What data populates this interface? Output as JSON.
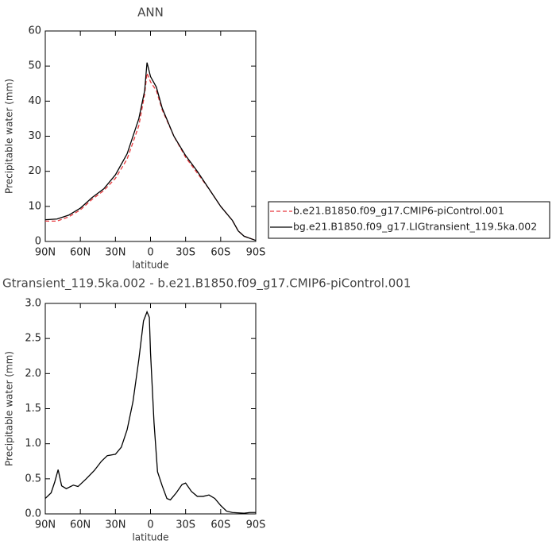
{
  "chart_data": [
    {
      "type": "line",
      "title": "ANN",
      "ylabel": "Precipitable water (mm)",
      "xlabel": "latitude",
      "x": [
        90,
        80,
        70,
        60,
        50,
        40,
        30,
        20,
        10,
        5,
        3,
        0,
        -5,
        -10,
        -20,
        -30,
        -40,
        -50,
        -60,
        -70,
        -75,
        -80,
        -90
      ],
      "series": [
        {
          "name": "b.e21.B1850.f09_g17.CMIP6-piControl.001",
          "color": "#e8383d",
          "style": "dashed",
          "values": [
            5.8,
            5.8,
            7,
            9,
            12,
            14.5,
            18,
            23.5,
            33,
            42,
            48,
            45.5,
            43,
            37.5,
            30,
            24,
            19.5,
            15,
            10,
            6,
            3,
            1.5,
            0.3
          ]
        },
        {
          "name": "bg.e21.B1850.f09_g17.LIGtransient_119.5ka.002",
          "color": "#000000",
          "style": "solid",
          "values": [
            6.2,
            6.4,
            7.5,
            9.5,
            12.5,
            15,
            19,
            25,
            35,
            43,
            51,
            47,
            44,
            38,
            30,
            24.5,
            20,
            15,
            10,
            6,
            3,
            1.5,
            0.3
          ]
        }
      ],
      "xlim": [
        90,
        -90
      ],
      "xticks": [
        {
          "value": 90,
          "label": "90N"
        },
        {
          "value": 60,
          "label": "60N"
        },
        {
          "value": 30,
          "label": "30N"
        },
        0,
        {
          "value": -30,
          "label": "30S"
        },
        {
          "value": -60,
          "label": "60S"
        },
        {
          "value": -90,
          "label": "90S"
        }
      ],
      "ylim": [
        0,
        60
      ],
      "yticks": [
        0,
        10,
        20,
        30,
        40,
        50,
        60
      ],
      "legend": "right"
    },
    {
      "type": "line",
      "title": "Gtransient_119.5ka.002 - b.e21.B1850.f09_g17.CMIP6-piControl.001",
      "ylabel": "Precipitable water (mm)",
      "xlabel": "latitude",
      "color": "#000000",
      "x": [
        90,
        85,
        82,
        79,
        76,
        72,
        66,
        62,
        55,
        48,
        42,
        37,
        30,
        25,
        20,
        15,
        10,
        6,
        3,
        1,
        0,
        -3,
        -6,
        -10,
        -14,
        -17,
        -22,
        -27,
        -30,
        -35,
        -40,
        -45,
        -50,
        -55,
        -60,
        -65,
        -70,
        -80,
        -85,
        -90
      ],
      "values": [
        0.22,
        0.3,
        0.45,
        0.63,
        0.4,
        0.36,
        0.41,
        0.39,
        0.5,
        0.62,
        0.75,
        0.83,
        0.85,
        0.95,
        1.2,
        1.6,
        2.2,
        2.75,
        2.88,
        2.8,
        2.3,
        1.3,
        0.6,
        0.4,
        0.22,
        0.2,
        0.3,
        0.42,
        0.44,
        0.32,
        0.25,
        0.25,
        0.27,
        0.22,
        0.12,
        0.04,
        0.02,
        0.01,
        0.02,
        0.02
      ],
      "xlim": [
        90,
        -90
      ],
      "xticks": [
        {
          "value": 90,
          "label": "90N"
        },
        {
          "value": 60,
          "label": "60N"
        },
        {
          "value": 30,
          "label": "30N"
        },
        0,
        {
          "value": -30,
          "label": "30S"
        },
        {
          "value": -60,
          "label": "60S"
        },
        {
          "value": -90,
          "label": "90S"
        }
      ],
      "ylim": [
        0,
        3
      ],
      "yticks": [
        {
          "value": 0,
          "label": "0.0"
        },
        0.5,
        {
          "value": 1,
          "label": "1.0"
        },
        1.5,
        {
          "value": 2,
          "label": "2.0"
        },
        2.5,
        {
          "value": 3,
          "label": "3.0"
        }
      ]
    }
  ]
}
